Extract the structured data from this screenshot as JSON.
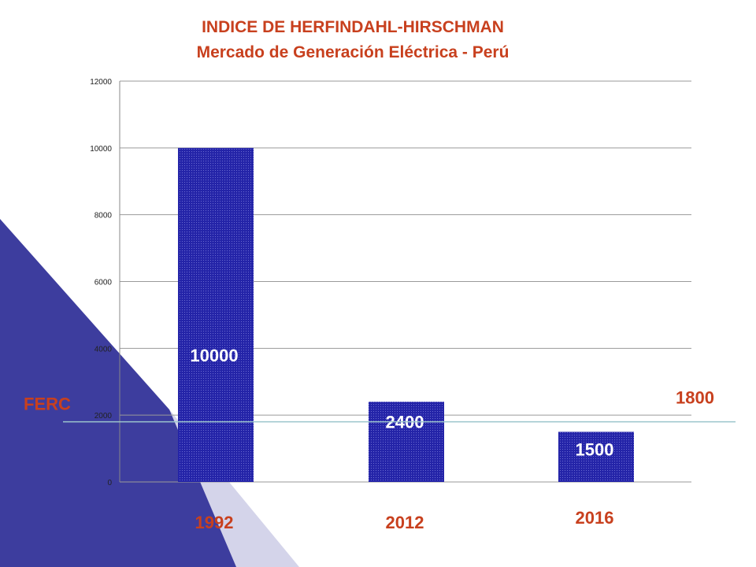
{
  "chart_data": {
    "type": "bar",
    "title": "INDICE DE HERFINDAHL-HIRSCHMAN",
    "subtitle": "Mercado de Generación Eléctrica - Perú",
    "categories": [
      "1992",
      "2012",
      "2016"
    ],
    "values": [
      10000,
      2400,
      1500
    ],
    "data_labels": [
      "10000",
      "2400",
      "1500"
    ],
    "ylim": [
      0,
      12000
    ],
    "yticks": [
      0,
      2000,
      4000,
      6000,
      8000,
      10000,
      12000
    ],
    "ytick_labels": [
      "0",
      "2000",
      "4000",
      "6000",
      "8000",
      "10000",
      "12000"
    ],
    "grid": true,
    "legend": "none",
    "reference_line": {
      "label": "FERC",
      "value": 1800,
      "value_label": "1800"
    },
    "colors": {
      "bar": "#2424a8",
      "title": "#c8401e",
      "accent_triangle": "#3d3d9e",
      "accent_triangle_light": "#d4d4ea",
      "reference_line": "#9cc5cc"
    }
  }
}
